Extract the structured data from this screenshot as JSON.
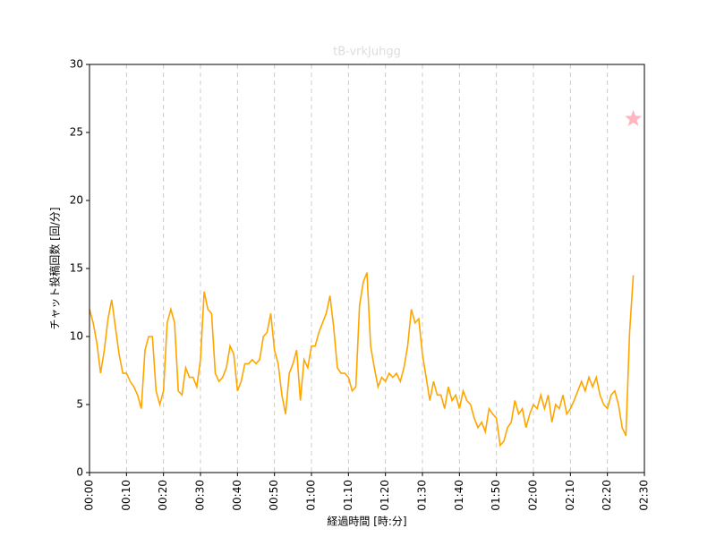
{
  "chart_data": {
    "type": "line",
    "title": "tB-vrkJuhgg",
    "x_label": "経過時間 [時:分]",
    "y_label": "チャット投稿回数 [回/分]",
    "x": [
      0,
      1,
      2,
      3,
      4,
      5,
      6,
      7,
      8,
      9,
      10,
      11,
      12,
      13,
      14,
      15,
      16,
      17,
      18,
      19,
      20,
      21,
      22,
      23,
      24,
      25,
      26,
      27,
      28,
      29,
      30,
      31,
      32,
      33,
      34,
      35,
      36,
      37,
      38,
      39,
      40,
      41,
      42,
      43,
      44,
      45,
      46,
      47,
      48,
      49,
      50,
      51,
      52,
      53,
      54,
      55,
      56,
      57,
      58,
      59,
      60,
      61,
      62,
      63,
      64,
      65,
      66,
      67,
      68,
      69,
      70,
      71,
      72,
      73,
      74,
      75,
      76,
      77,
      78,
      79,
      80,
      81,
      82,
      83,
      84,
      85,
      86,
      87,
      88,
      89,
      90,
      91,
      92,
      93,
      94,
      95,
      96,
      97,
      98,
      99,
      100,
      101,
      102,
      103,
      104,
      105,
      106,
      107,
      108,
      109,
      110,
      111,
      112,
      113,
      114,
      115,
      116,
      117,
      118,
      119,
      120,
      121,
      122,
      123,
      124,
      125,
      126,
      127,
      128,
      129,
      130,
      131,
      132,
      133,
      134,
      135,
      136,
      137,
      138,
      139,
      140,
      141,
      142,
      143,
      144,
      145,
      146,
      147
    ],
    "series": [
      {
        "color": "#ffa500",
        "values": [
          12,
          11,
          9.5,
          7.3,
          9,
          11.3,
          12.7,
          10.7,
          8.7,
          7.3,
          7.3,
          6.7,
          6.3,
          5.7,
          4.7,
          9,
          10,
          10,
          6,
          5,
          6,
          11,
          12,
          11,
          6,
          5.7,
          7.7,
          7,
          7,
          6.3,
          8.3,
          13.3,
          12,
          11.7,
          7.3,
          6.7,
          7,
          7.7,
          9.3,
          8.7,
          6,
          6.7,
          8,
          8,
          8.3,
          8,
          8.3,
          10,
          10.3,
          11.7,
          9,
          8,
          5.7,
          4.3,
          7.3,
          8,
          9,
          5.3,
          8.3,
          7.7,
          9.3,
          9.3,
          10.3,
          11,
          11.7,
          13,
          10.7,
          7.7,
          7.3,
          7.3,
          7,
          6,
          6.3,
          12.3,
          14,
          14.7,
          9.3,
          7.7,
          6.3,
          7,
          6.7,
          7.3,
          7,
          7.3,
          6.7,
          7.7,
          9.3,
          12,
          11,
          11.3,
          8.7,
          7,
          5.3,
          6.7,
          5.7,
          5.7,
          4.7,
          6.3,
          5.3,
          5.7,
          4.7,
          6,
          5.3,
          5,
          4,
          3.3,
          3.7,
          3,
          4.7,
          4.3,
          4,
          2,
          2.3,
          3.3,
          3.7,
          5.3,
          4.3,
          4.7,
          3.3,
          4.3,
          5,
          4.7,
          5.7,
          4.7,
          5.7,
          3.7,
          5,
          4.7,
          5.7,
          4.3,
          4.7,
          5.3,
          6,
          6.7,
          6,
          7,
          6.3,
          7,
          5.7,
          5,
          4.7,
          5.7,
          6,
          5,
          3.3,
          2.7,
          10.3,
          14.5
        ]
      }
    ],
    "marker": {
      "x": 147,
      "y": 26,
      "color": "#ffb6c1",
      "shape": "star"
    },
    "xlim": [
      0,
      150
    ],
    "xticks": [
      {
        "value": 0,
        "label": "00:00"
      },
      {
        "value": 10,
        "label": "00:10"
      },
      {
        "value": 20,
        "label": "00:20"
      },
      {
        "value": 30,
        "label": "00:30"
      },
      {
        "value": 40,
        "label": "00:40"
      },
      {
        "value": 50,
        "label": "00:50"
      },
      {
        "value": 60,
        "label": "01:00"
      },
      {
        "value": 70,
        "label": "01:10"
      },
      {
        "value": 80,
        "label": "01:20"
      },
      {
        "value": 90,
        "label": "01:30"
      },
      {
        "value": 100,
        "label": "01:40"
      },
      {
        "value": 110,
        "label": "01:50"
      },
      {
        "value": 120,
        "label": "02:00"
      },
      {
        "value": 130,
        "label": "02:10"
      },
      {
        "value": 140,
        "label": "02:20"
      },
      {
        "value": 150,
        "label": "02:30"
      }
    ],
    "ylim": [
      0,
      30
    ],
    "yticks": [
      0,
      5,
      10,
      15,
      20,
      25,
      30
    ],
    "grid": "x"
  }
}
